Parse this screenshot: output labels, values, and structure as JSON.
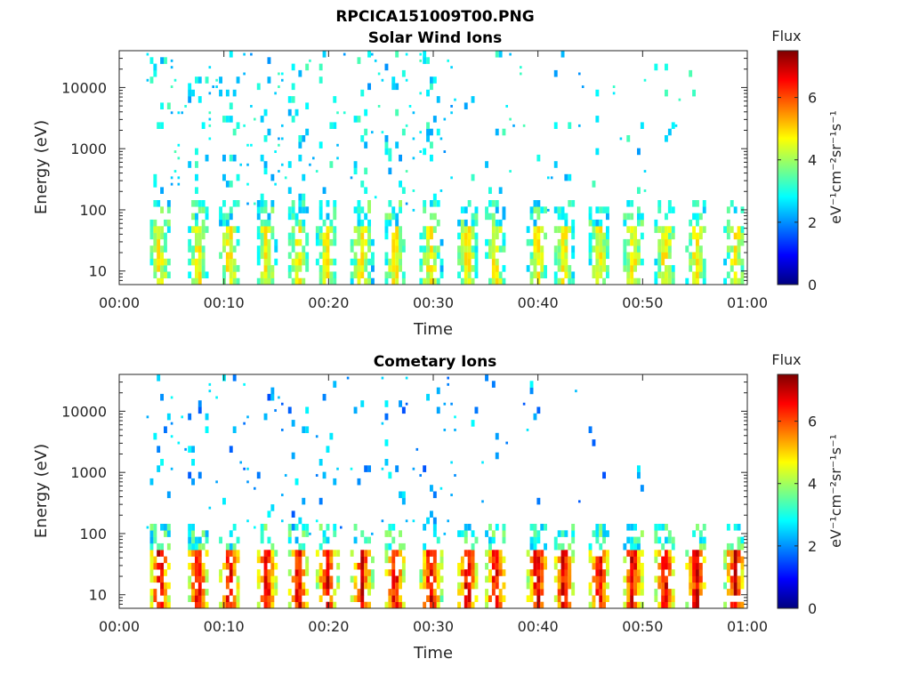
{
  "figure_title": "RPCICA151009T00.PNG",
  "colors": {
    "background": "#ffffff",
    "axes": "#262626",
    "colormap": [
      "#00007f",
      "#0000ff",
      "#007fff",
      "#00ffff",
      "#7fff7f",
      "#ffff00",
      "#ff7f00",
      "#ff0000",
      "#7f0000"
    ]
  },
  "chart_data": [
    {
      "type": "heatmap",
      "title": "Solar Wind Ions",
      "xlabel": "Time",
      "ylabel": "Energy (eV)",
      "x_range": [
        "00:00",
        "01:00"
      ],
      "x_ticks": [
        "00:00",
        "00:10",
        "00:20",
        "00:30",
        "00:40",
        "00:50",
        "01:00"
      ],
      "y_scale": "log",
      "y_range": [
        6,
        40000
      ],
      "y_ticks": [
        "10",
        "100",
        "1000",
        "10000"
      ],
      "colorbar": {
        "label": "Flux",
        "unit": "eV⁻¹cm⁻²sr⁻¹s⁻¹",
        "range": [
          0,
          7.5
        ],
        "ticks": [
          "0",
          "2",
          "4",
          "6"
        ]
      },
      "bursts_minutes": [
        3.7,
        7.4,
        10.4,
        13.9,
        17.0,
        19.7,
        23.0,
        26.2,
        29.6,
        33.1,
        35.8,
        39.8,
        42.3,
        45.7,
        48.9,
        52.0,
        55.0,
        58.7
      ],
      "dominant_low_energy_flux": 4.5,
      "max_flux": 5.0,
      "sparse_background": "scattered 2-3.5 flux points at 100-30000 eV, densest 00:03-00:30"
    },
    {
      "type": "heatmap",
      "title": "Cometary Ions",
      "xlabel": "Time",
      "ylabel": "Energy (eV)",
      "x_range": [
        "00:00",
        "01:00"
      ],
      "x_ticks": [
        "00:00",
        "00:10",
        "00:20",
        "00:30",
        "00:40",
        "00:50",
        "01:00"
      ],
      "y_scale": "log",
      "y_range": [
        6,
        40000
      ],
      "y_ticks": [
        "10",
        "100",
        "1000",
        "10000"
      ],
      "colorbar": {
        "label": "Flux",
        "unit": "eV⁻¹cm⁻²sr⁻¹s⁻¹",
        "range": [
          0,
          7.5
        ],
        "ticks": [
          "0",
          "2",
          "4",
          "6"
        ]
      },
      "bursts_minutes": [
        3.7,
        7.4,
        10.4,
        13.9,
        17.0,
        19.7,
        23.0,
        26.2,
        29.6,
        33.1,
        35.8,
        39.8,
        42.3,
        45.7,
        48.9,
        52.0,
        55.0,
        58.7
      ],
      "dominant_low_energy_flux": 6.3,
      "max_flux": 7.2,
      "sparse_background": "scattered 1.5-3 flux points at 300-30000 eV, densest 00:03-00:37"
    }
  ]
}
